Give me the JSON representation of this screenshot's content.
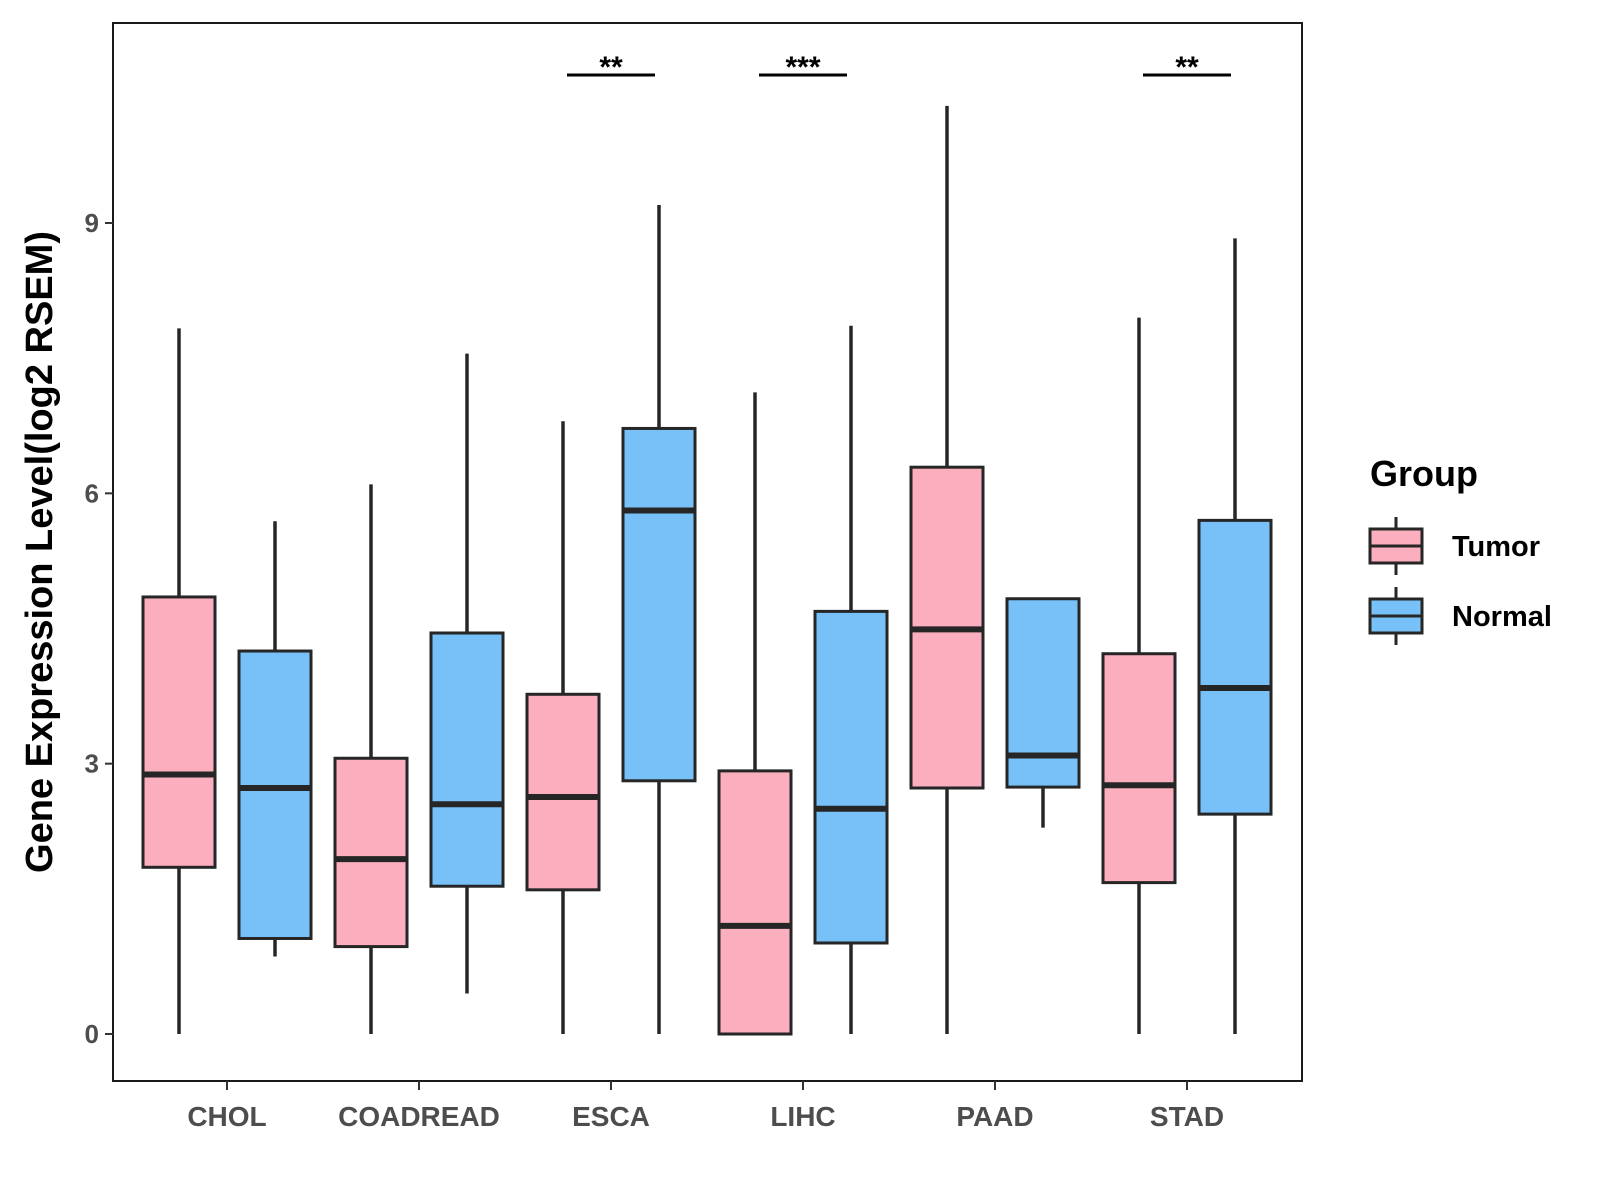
{
  "chart_data": {
    "type": "boxplot",
    "title": "",
    "xlabel": "",
    "ylabel": "Gene Expression Level(log2 RSEM)",
    "ylim": [
      -0.52,
      11.25
    ],
    "yticks": [
      0,
      3,
      6,
      9
    ],
    "grid": false,
    "legend_position": "right",
    "legend_title": "Group",
    "categories": [
      "CHOL",
      "COADREAD",
      "ESCA",
      "LIHC",
      "PAAD",
      "STAD"
    ],
    "series": [
      {
        "name": "Tumor",
        "color": "#FBAFBE",
        "boxes": [
          {
            "category": "CHOL",
            "min": 0.0,
            "q1": 1.85,
            "median": 2.88,
            "q3": 4.85,
            "max": 7.83
          },
          {
            "category": "COADREAD",
            "min": 0.0,
            "q1": 0.97,
            "median": 1.94,
            "q3": 3.06,
            "max": 6.1
          },
          {
            "category": "ESCA",
            "min": 0.0,
            "q1": 1.6,
            "median": 2.63,
            "q3": 3.77,
            "max": 6.8
          },
          {
            "category": "LIHC",
            "min": 0.0,
            "q1": 0.0,
            "median": 1.2,
            "q3": 2.92,
            "max": 7.12
          },
          {
            "category": "PAAD",
            "min": 0.0,
            "q1": 2.73,
            "median": 4.49,
            "q3": 6.29,
            "max": 10.3
          },
          {
            "category": "STAD",
            "min": 0.0,
            "q1": 1.68,
            "median": 2.76,
            "q3": 4.22,
            "max": 7.95
          }
        ]
      },
      {
        "name": "Normal",
        "color": "#77C1F8",
        "boxes": [
          {
            "category": "CHOL",
            "min": 0.86,
            "q1": 1.06,
            "median": 2.73,
            "q3": 4.25,
            "max": 5.69
          },
          {
            "category": "COADREAD",
            "min": 0.45,
            "q1": 1.64,
            "median": 2.55,
            "q3": 4.45,
            "max": 7.55
          },
          {
            "category": "ESCA",
            "min": 0.0,
            "q1": 2.81,
            "median": 5.81,
            "q3": 6.72,
            "max": 9.2
          },
          {
            "category": "LIHC",
            "min": 0.0,
            "q1": 1.01,
            "median": 2.5,
            "q3": 4.69,
            "max": 7.86
          },
          {
            "category": "PAAD",
            "min": 2.29,
            "q1": 2.74,
            "median": 3.09,
            "q3": 4.83,
            "max": 4.83
          },
          {
            "category": "STAD",
            "min": 0.0,
            "q1": 2.44,
            "median": 3.84,
            "q3": 5.7,
            "max": 8.83
          }
        ]
      }
    ],
    "significance": [
      {
        "category": "ESCA",
        "label": "**"
      },
      {
        "category": "LIHC",
        "label": "***"
      },
      {
        "category": "STAD",
        "label": "**"
      }
    ]
  }
}
